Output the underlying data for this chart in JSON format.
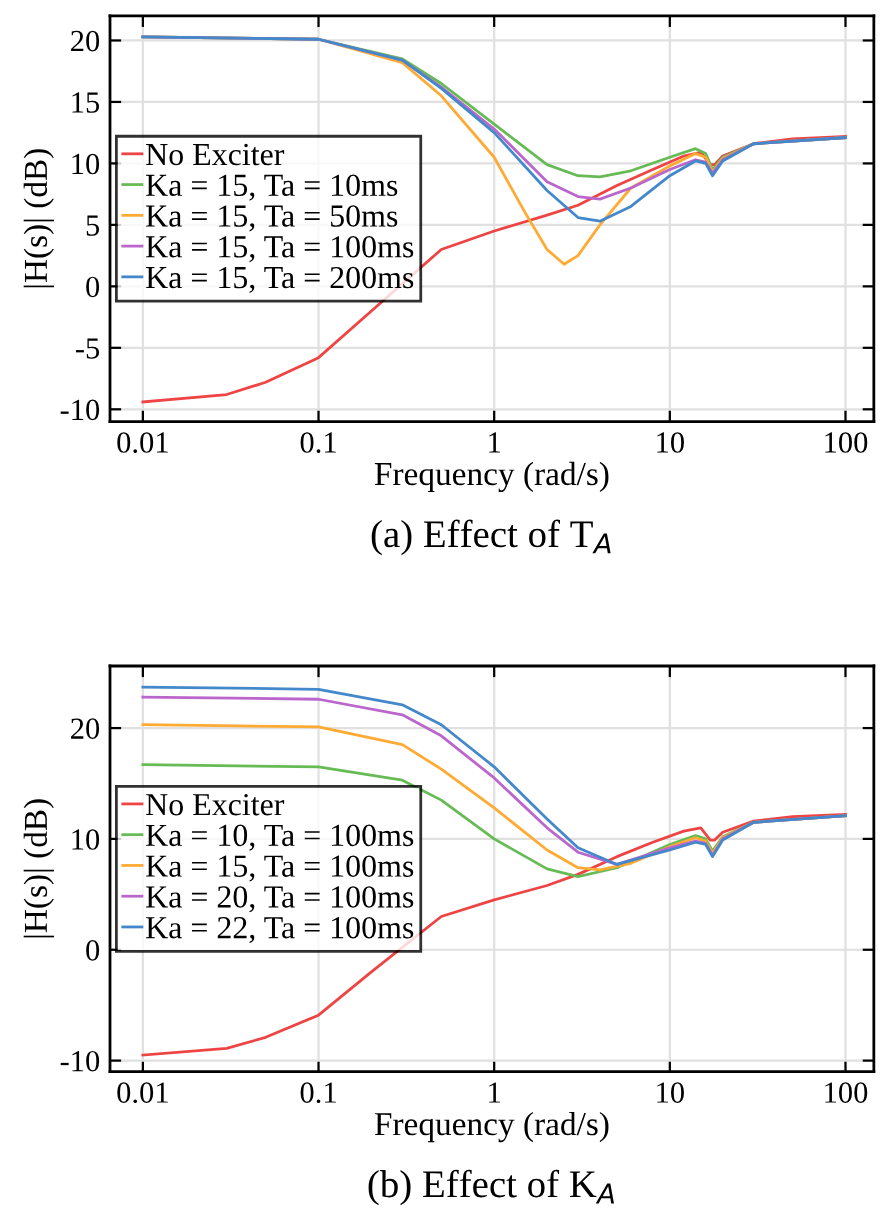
{
  "chart_data": [
    {
      "type": "line",
      "title": "(a) Effect of T$_{A}$",
      "xlabel": "Frequency (rad/s)",
      "ylabel": "|H(s)| (dB)",
      "log": "x",
      "grid": true,
      "legend": "left",
      "line_style": "solid",
      "xlim": [
        0.0065,
        145
      ],
      "ylim": [
        -11,
        22
      ],
      "xticks": [
        0.01,
        0.1,
        1,
        10,
        100
      ],
      "yticks": [
        -10,
        -5,
        0,
        5,
        10,
        15,
        20
      ],
      "series": [
        {
          "name": "No Exciter",
          "color": "#ee4444",
          "x": [
            0.01,
            0.03,
            0.05,
            0.1,
            0.2,
            0.5,
            1,
            2,
            3,
            5,
            8,
            12,
            15,
            17,
            18,
            20,
            30,
            50,
            100
          ],
          "values": [
            -9.4,
            -8.8,
            -7.8,
            -5.8,
            -2,
            3,
            4.5,
            5.8,
            6.6,
            8.2,
            9.5,
            10.6,
            10.9,
            9.9,
            9.9,
            10.6,
            11.6,
            12.0,
            12.2
          ]
        },
        {
          "name": "Ka = 15, Ta = 10ms",
          "color": "#66bb55",
          "x": [
            0.01,
            0.1,
            0.3,
            0.5,
            1,
            2,
            3,
            4,
            6,
            10,
            14,
            16,
            17.5,
            20,
            30,
            100
          ],
          "values": [
            20.3,
            20.1,
            18.5,
            16.5,
            13.2,
            9.9,
            9.0,
            8.9,
            9.4,
            10.5,
            11.2,
            10.8,
            9.5,
            10.5,
            11.6,
            12.1
          ]
        },
        {
          "name": "Ka = 15, Ta = 50ms",
          "color": "#ffaa33",
          "x": [
            0.01,
            0.1,
            0.3,
            0.5,
            1,
            1.5,
            2,
            2.5,
            3,
            4,
            6,
            10,
            14,
            16,
            17.5,
            20,
            30,
            100
          ],
          "values": [
            20.3,
            20.1,
            18.2,
            15.5,
            10.5,
            6,
            3,
            1.8,
            2.5,
            5,
            8,
            9.8,
            10.8,
            10.5,
            9.3,
            10.4,
            11.6,
            12.1
          ]
        },
        {
          "name": "Ka = 15, Ta = 100ms",
          "color": "#bb66cc",
          "x": [
            0.01,
            0.1,
            0.3,
            0.5,
            1,
            2,
            3,
            4,
            6,
            10,
            14,
            16,
            17.5,
            20,
            30,
            100
          ],
          "values": [
            20.3,
            20.1,
            18.4,
            16.2,
            12.8,
            8.5,
            7.3,
            7.1,
            8,
            9.5,
            10.3,
            10.1,
            9.2,
            10.3,
            11.6,
            12.1
          ]
        },
        {
          "name": "Ka = 15, Ta = 200ms",
          "color": "#4488cc",
          "x": [
            0.01,
            0.1,
            0.3,
            0.5,
            1,
            2,
            3,
            4,
            6,
            10,
            14,
            16,
            17.5,
            20,
            30,
            100
          ],
          "values": [
            20.3,
            20.1,
            18.4,
            16.1,
            12.5,
            7.8,
            5.6,
            5.3,
            6.5,
            9,
            10.2,
            10.0,
            9.0,
            10.2,
            11.6,
            12.1
          ]
        }
      ]
    },
    {
      "type": "line",
      "title": "(b) Effect of K$_{A}$",
      "xlabel": "Frequency (rad/s)",
      "ylabel": "|H(s)| (dB)",
      "log": "x",
      "grid": true,
      "legend": "left",
      "line_style": "solid",
      "xlim": [
        0.0065,
        145
      ],
      "ylim": [
        -11,
        25.6
      ],
      "xticks": [
        0.01,
        0.1,
        1,
        10,
        100
      ],
      "yticks": [
        -10,
        0,
        10,
        20
      ],
      "series": [
        {
          "name": "No Exciter",
          "color": "#ee4444",
          "x": [
            0.01,
            0.03,
            0.05,
            0.1,
            0.2,
            0.5,
            1,
            2,
            3,
            5,
            8,
            12,
            15,
            17,
            18,
            20,
            30,
            50,
            100
          ],
          "values": [
            -9.5,
            -8.9,
            -7.9,
            -5.9,
            -2,
            3,
            4.5,
            5.8,
            6.8,
            8.4,
            9.7,
            10.7,
            11.0,
            9.9,
            9.9,
            10.6,
            11.6,
            12.0,
            12.2
          ]
        },
        {
          "name": "Ka = 10, Ta = 100ms",
          "color": "#66bb55",
          "x": [
            0.01,
            0.1,
            0.3,
            0.5,
            1,
            2,
            3,
            5,
            10,
            14,
            16,
            17.5,
            20,
            30,
            100
          ],
          "values": [
            16.7,
            16.5,
            15.3,
            13.5,
            10,
            7.3,
            6.6,
            7.4,
            9.5,
            10.3,
            10.0,
            8.9,
            10.2,
            11.5,
            12.1
          ]
        },
        {
          "name": "Ka = 15, Ta = 100ms",
          "color": "#ffaa33",
          "x": [
            0.01,
            0.1,
            0.3,
            0.5,
            1,
            2,
            3,
            4,
            6,
            10,
            14,
            16,
            17.5,
            20,
            30,
            100
          ],
          "values": [
            20.3,
            20.1,
            18.5,
            16.3,
            12.8,
            9.0,
            7.4,
            7.2,
            7.8,
            9.3,
            10.1,
            9.8,
            8.7,
            10.1,
            11.5,
            12.1
          ]
        },
        {
          "name": "Ka = 20, Ta = 100ms",
          "color": "#bb66cc",
          "x": [
            0.01,
            0.1,
            0.3,
            0.5,
            1,
            2,
            3,
            5,
            10,
            14,
            16,
            17.5,
            20,
            30,
            100
          ],
          "values": [
            22.8,
            22.6,
            21.2,
            19.3,
            15.5,
            11,
            8.8,
            7.7,
            9.2,
            9.8,
            9.6,
            8.5,
            10.0,
            11.5,
            12.1
          ]
        },
        {
          "name": "Ka = 22, Ta = 100ms",
          "color": "#4488cc",
          "x": [
            0.01,
            0.1,
            0.3,
            0.5,
            1,
            2,
            3,
            5,
            10,
            14,
            16,
            17.5,
            20,
            30,
            100
          ],
          "values": [
            23.7,
            23.5,
            22.1,
            20.3,
            16.5,
            11.8,
            9.2,
            7.7,
            9.0,
            9.7,
            9.5,
            8.4,
            9.9,
            11.5,
            12.1
          ]
        }
      ]
    }
  ]
}
